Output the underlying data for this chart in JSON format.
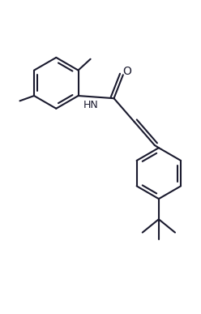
{
  "background_color": "#ffffff",
  "line_color": "#1a1a2e",
  "line_width": 1.5,
  "figsize": [
    2.48,
    3.87
  ],
  "dpi": 100,
  "xlim": [
    -0.3,
    3.6
  ],
  "ylim": [
    -0.8,
    5.0
  ]
}
